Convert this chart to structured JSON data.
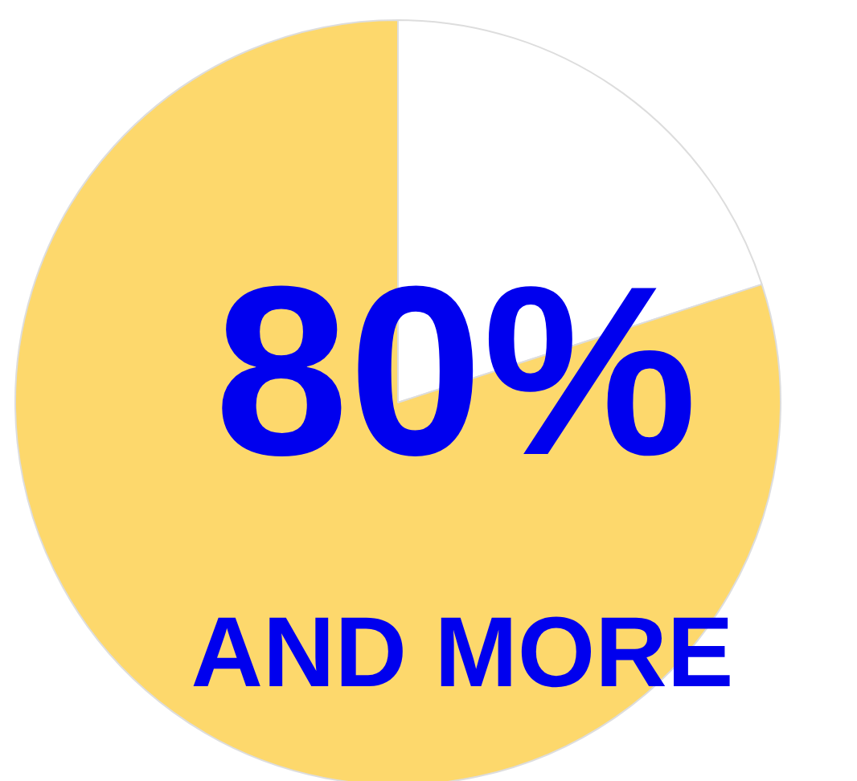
{
  "chart_data": {
    "type": "pie",
    "categories": [
      null,
      null
    ],
    "values": [
      20,
      80
    ],
    "colors": [
      "#ffffff",
      "#fdd86c"
    ],
    "annotations": [
      "80%",
      "AND MORE"
    ]
  }
}
